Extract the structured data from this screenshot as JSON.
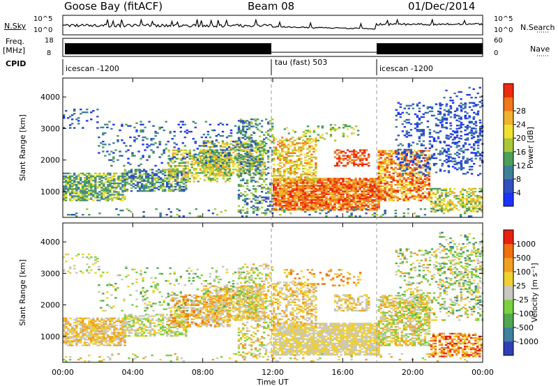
{
  "header": {
    "station": "Goose Bay (fitACF)",
    "beam": "Beam 08",
    "date": "01/Dec/2014"
  },
  "left_labels": {
    "nsky": "N.Sky",
    "nsky_hi": "10^5",
    "nsky_lo": "10^0",
    "freq_line1": "Freq.",
    "freq_line2": "[MHz]",
    "freq_hi": "18",
    "freq_lo": "8",
    "cpid": "CPID"
  },
  "right_labels": {
    "nsearch": "N.Search",
    "nsearch_hi": "10^5",
    "nsearch_lo": "10^0",
    "nave": "Nave",
    "nave_hi": "60",
    "nave_lo": "0"
  },
  "cpid_segments": [
    {
      "label": "icescan -1200",
      "start_hour": 0
    },
    {
      "label": "tau (fast) 503",
      "start_hour": 12
    },
    {
      "label": "icescan -1200",
      "start_hour": 18
    }
  ],
  "chart_data": [
    {
      "type": "heatmap",
      "name": "power",
      "ylabel": "Slant Range [km]",
      "ylim": [
        180,
        4600
      ],
      "yticks": [
        1000,
        2000,
        3000,
        4000
      ],
      "xlim": [
        0,
        24
      ],
      "colorbar": {
        "label": "Power [dB]",
        "ticks": [
          "4",
          "8",
          "12",
          "16",
          "20",
          "24",
          "28"
        ],
        "colors": [
          "#1a33ff",
          "#2f4fc0",
          "#3f7f9a",
          "#4c9f5a",
          "#a8c83a",
          "#f0e030",
          "#f0b030",
          "#f07818",
          "#ee2a10"
        ]
      }
    },
    {
      "type": "heatmap",
      "name": "velocity",
      "ylabel": "Slant Range [km]",
      "ylim": [
        180,
        4600
      ],
      "yticks": [
        1000,
        2000,
        3000,
        4000
      ],
      "xlim": [
        0,
        24
      ],
      "xlabel": "Time UT",
      "xticks": [
        "00:00",
        "04:00",
        "08:00",
        "12:00",
        "16:00",
        "20:00",
        "00:00"
      ],
      "colorbar": {
        "label": "Velocity [m s⁻¹]",
        "ticks": [
          "1000",
          "500",
          "100",
          "25",
          "-25",
          "-100",
          "-500",
          "-1000"
        ],
        "colors": [
          "#2f3fb8",
          "#3f7fa0",
          "#4fa850",
          "#7ad040",
          "#c8c8c0",
          "#f0d030",
          "#f0a020",
          "#f07010",
          "#e82010"
        ]
      }
    }
  ]
}
